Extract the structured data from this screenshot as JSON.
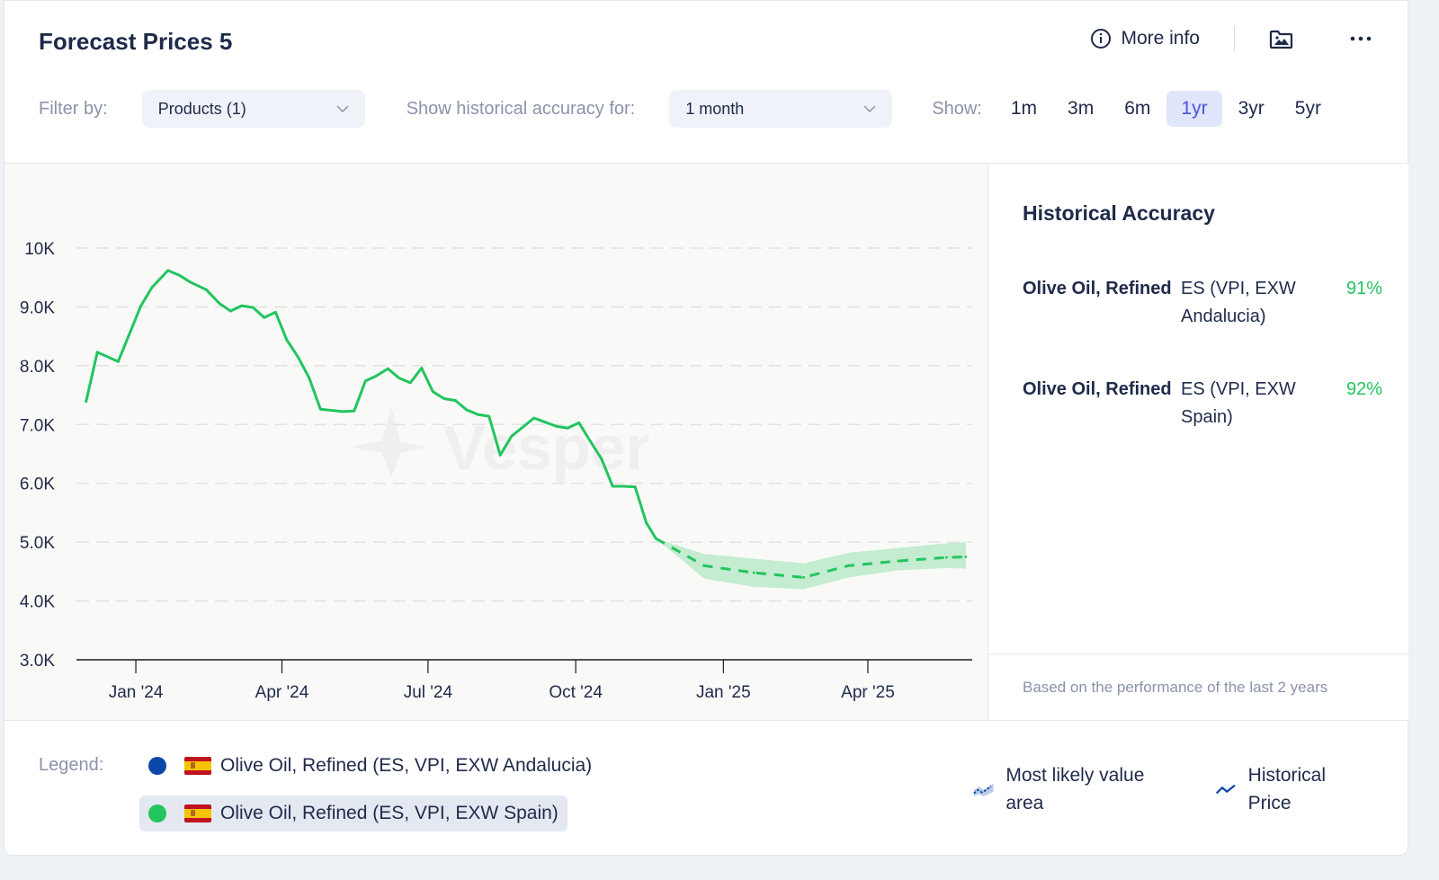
{
  "header": {
    "title": "Forecast Prices 5",
    "more_info_label": "More info"
  },
  "filters": {
    "filter_label": "Filter by:",
    "products_value": "Products (1)",
    "accuracy_label": "Show historical accuracy for:",
    "accuracy_value": "1 month",
    "show_label": "Show:",
    "periods": [
      "1m",
      "3m",
      "6m",
      "1yr",
      "3yr",
      "5yr"
    ],
    "active_period": "1yr"
  },
  "side_panel": {
    "title": "Historical Accuracy",
    "rows": [
      {
        "product": "Olive Oil, Refined",
        "location": "ES (VPI, EXW Andalucia)",
        "accuracy": "91%"
      },
      {
        "product": "Olive Oil, Refined",
        "location": "ES (VPI, EXW Spain)",
        "accuracy": "92%"
      }
    ],
    "footnote": "Based on the performance of the last 2 years"
  },
  "legend": {
    "label": "Legend:",
    "items": [
      {
        "label": "Olive Oil, Refined (ES, VPI, EXW Andalucia)",
        "color": "#0b47a8",
        "selected": false
      },
      {
        "label": "Olive Oil, Refined (ES, VPI, EXW Spain)",
        "color": "#22c55e",
        "selected": true
      }
    ],
    "key_forecast": "Most likely value area",
    "key_historical": "Historical Price"
  },
  "watermark": "Vesper",
  "chart_data": {
    "type": "line",
    "title": "",
    "xlabel": "",
    "ylabel": "",
    "ylim": [
      3000,
      10000
    ],
    "yticks": [
      3000,
      4000,
      5000,
      6000,
      7000,
      8000,
      9000,
      10000
    ],
    "ytick_labels": [
      "3.0K",
      "4.0K",
      "5.0K",
      "6.0K",
      "7.0K",
      "8.0K",
      "9.0K",
      "10K"
    ],
    "xlim": [
      "2023-11-25",
      "2025-06-05"
    ],
    "xticks": [
      "2024-01-01",
      "2024-04-01",
      "2024-07-01",
      "2024-10-01",
      "2025-01-01",
      "2025-04-01"
    ],
    "xtick_labels": [
      "Jan '24",
      "Apr '24",
      "Jul '24",
      "Oct '24",
      "Jan '25",
      "Apr '25"
    ],
    "grid": true,
    "series": [
      {
        "name": "Olive Oil, Refined (ES, VPI, EXW Spain) - Historical Price",
        "color": "#22c55e",
        "style": "solid",
        "x": [
          "2023-12-01",
          "2023-12-08",
          "2023-12-21",
          "2024-01-04",
          "2024-01-11",
          "2024-01-21",
          "2024-01-28",
          "2024-02-04",
          "2024-02-14",
          "2024-02-22",
          "2024-02-29",
          "2024-03-07",
          "2024-03-14",
          "2024-03-21",
          "2024-03-28",
          "2024-04-04",
          "2024-04-11",
          "2024-04-18",
          "2024-04-25",
          "2024-05-09",
          "2024-05-16",
          "2024-05-23",
          "2024-05-30",
          "2024-06-06",
          "2024-06-13",
          "2024-06-20",
          "2024-06-27",
          "2024-07-04",
          "2024-07-11",
          "2024-07-18",
          "2024-07-25",
          "2024-08-01",
          "2024-08-08",
          "2024-08-15",
          "2024-08-22",
          "2024-09-05",
          "2024-09-12",
          "2024-09-19",
          "2024-09-26",
          "2024-10-03",
          "2024-10-10",
          "2024-10-17",
          "2024-10-24",
          "2024-10-31",
          "2024-11-07",
          "2024-11-14",
          "2024-11-20"
        ],
        "values": [
          7390,
          8230,
          8070,
          9010,
          9330,
          9620,
          9540,
          9420,
          9290,
          9060,
          8930,
          9020,
          8990,
          8820,
          8910,
          8440,
          8150,
          7790,
          7260,
          7220,
          7230,
          7740,
          7830,
          7950,
          7790,
          7710,
          7960,
          7560,
          7440,
          7410,
          7250,
          7170,
          7140,
          6480,
          6800,
          7110,
          7040,
          6970,
          6940,
          7030,
          6720,
          6420,
          5950,
          5950,
          5940,
          5330,
          5060
        ]
      },
      {
        "name": "Olive Oil, Refined (ES, VPI, EXW Spain) - Forecast (most likely)",
        "color": "#22c55e",
        "style": "dashed",
        "x": [
          "2024-11-20",
          "2024-12-20",
          "2025-01-20",
          "2025-02-20",
          "2025-03-20",
          "2025-04-20",
          "2025-05-20",
          "2025-06-01"
        ],
        "values": [
          5060,
          4600,
          4480,
          4400,
          4600,
          4680,
          4740,
          4750
        ],
        "lower": [
          5060,
          4380,
          4240,
          4200,
          4400,
          4520,
          4560,
          4550
        ],
        "upper": [
          5060,
          4800,
          4720,
          4640,
          4820,
          4900,
          4980,
          5000
        ]
      }
    ]
  }
}
